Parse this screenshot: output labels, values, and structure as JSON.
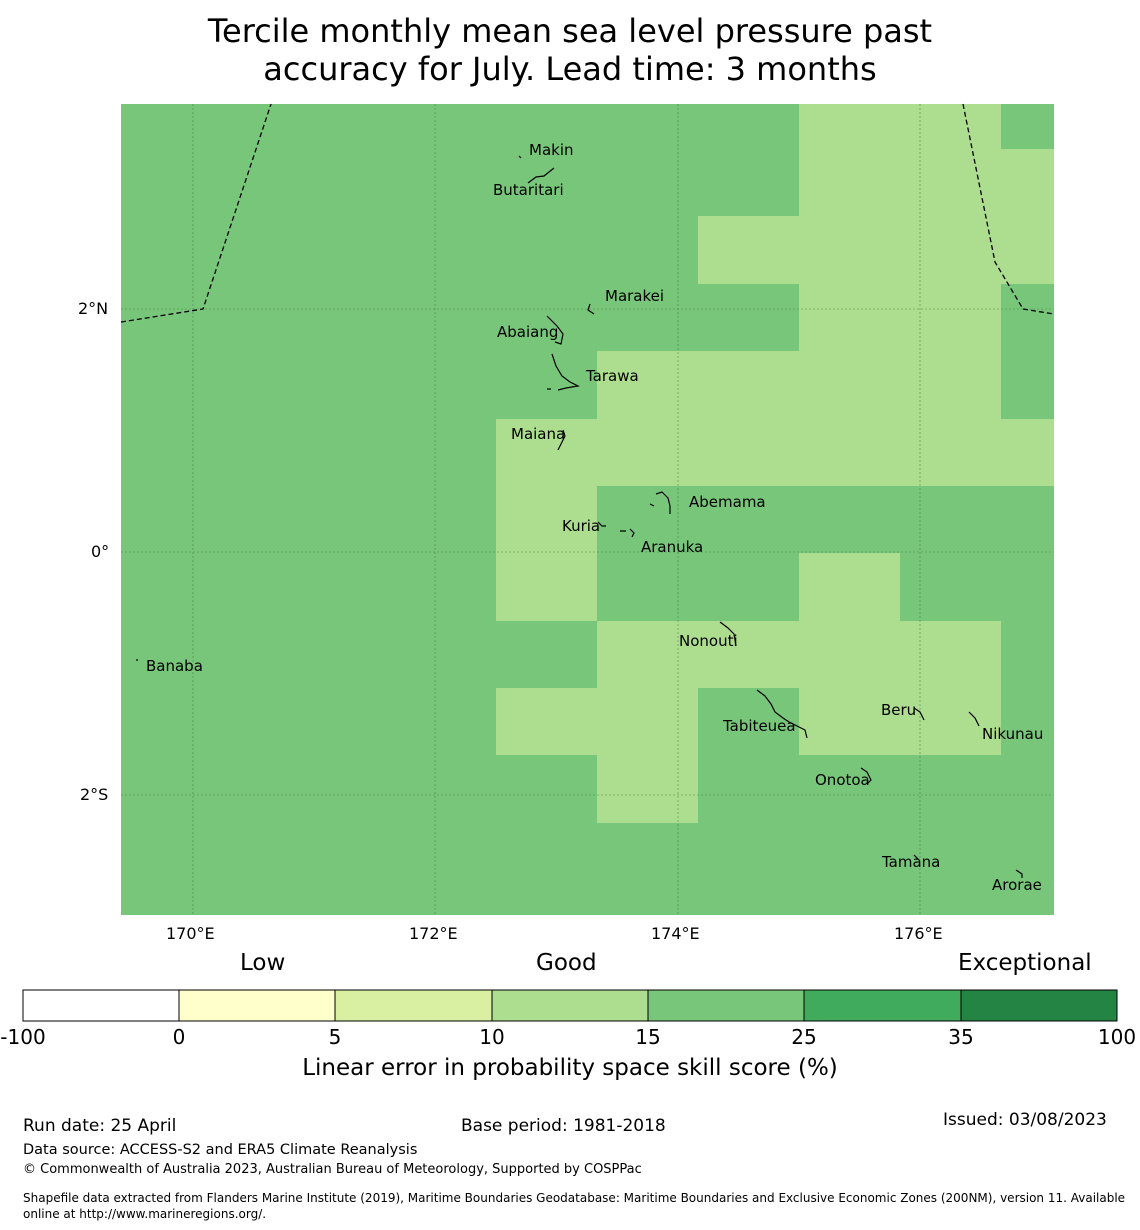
{
  "title_line1": "Tercile monthly mean sea level pressure past",
  "title_line2": "accuracy for July. Lead time: 3 months",
  "axes": {
    "lon_ticks": [
      "170°E",
      "172°E",
      "174°E",
      "176°E"
    ],
    "lat_ticks": [
      "2°N",
      "0°",
      "2°S"
    ]
  },
  "islands": [
    {
      "name": "Makin"
    },
    {
      "name": "Butaritari"
    },
    {
      "name": "Marakei"
    },
    {
      "name": "Abaiang"
    },
    {
      "name": "Tarawa"
    },
    {
      "name": "Maiana"
    },
    {
      "name": "Abemama"
    },
    {
      "name": "Kuria"
    },
    {
      "name": "Aranuka"
    },
    {
      "name": "Banaba"
    },
    {
      "name": "Nonouti"
    },
    {
      "name": "Tabiteuea"
    },
    {
      "name": "Beru"
    },
    {
      "name": "Nikunau"
    },
    {
      "name": "Onotoa"
    },
    {
      "name": "Tamana"
    },
    {
      "name": "Arorae"
    }
  ],
  "colorbar": {
    "categories": [
      "Low",
      "Good",
      "Exceptional"
    ],
    "ticks": [
      "-100",
      "0",
      "5",
      "10",
      "15",
      "25",
      "35",
      "100"
    ],
    "colors": [
      "#ffffff",
      "#ffffcc",
      "#d9f0a3",
      "#addd8e",
      "#78c679",
      "#41ab5d",
      "#238443"
    ],
    "title": "Linear error in probability space skill score (%)"
  },
  "footer": {
    "run_date": "Run date: 25 April",
    "base_period": "Base period: 1981-2018",
    "issued": "Issued: 03/08/2023",
    "data_source": "Data source: ACCESS-S2 and ERA5 Climate Reanalysis",
    "copyright": "© Commonwealth of Australia 2023, Australian Bureau of Meteorology, Supported by COSPPac",
    "shapefile_line1": "Shapefile data extracted from Flanders Marine Institute (2019), Maritime Boundaries Geodatabase: Maritime Boundaries and Exclusive Economic Zones (200NM), version 11. Available",
    "shapefile_line2": "online at http://www.marineregions.org/."
  },
  "map_colors": {
    "medium_green": "#78c679",
    "light_green": "#addd8e"
  }
}
